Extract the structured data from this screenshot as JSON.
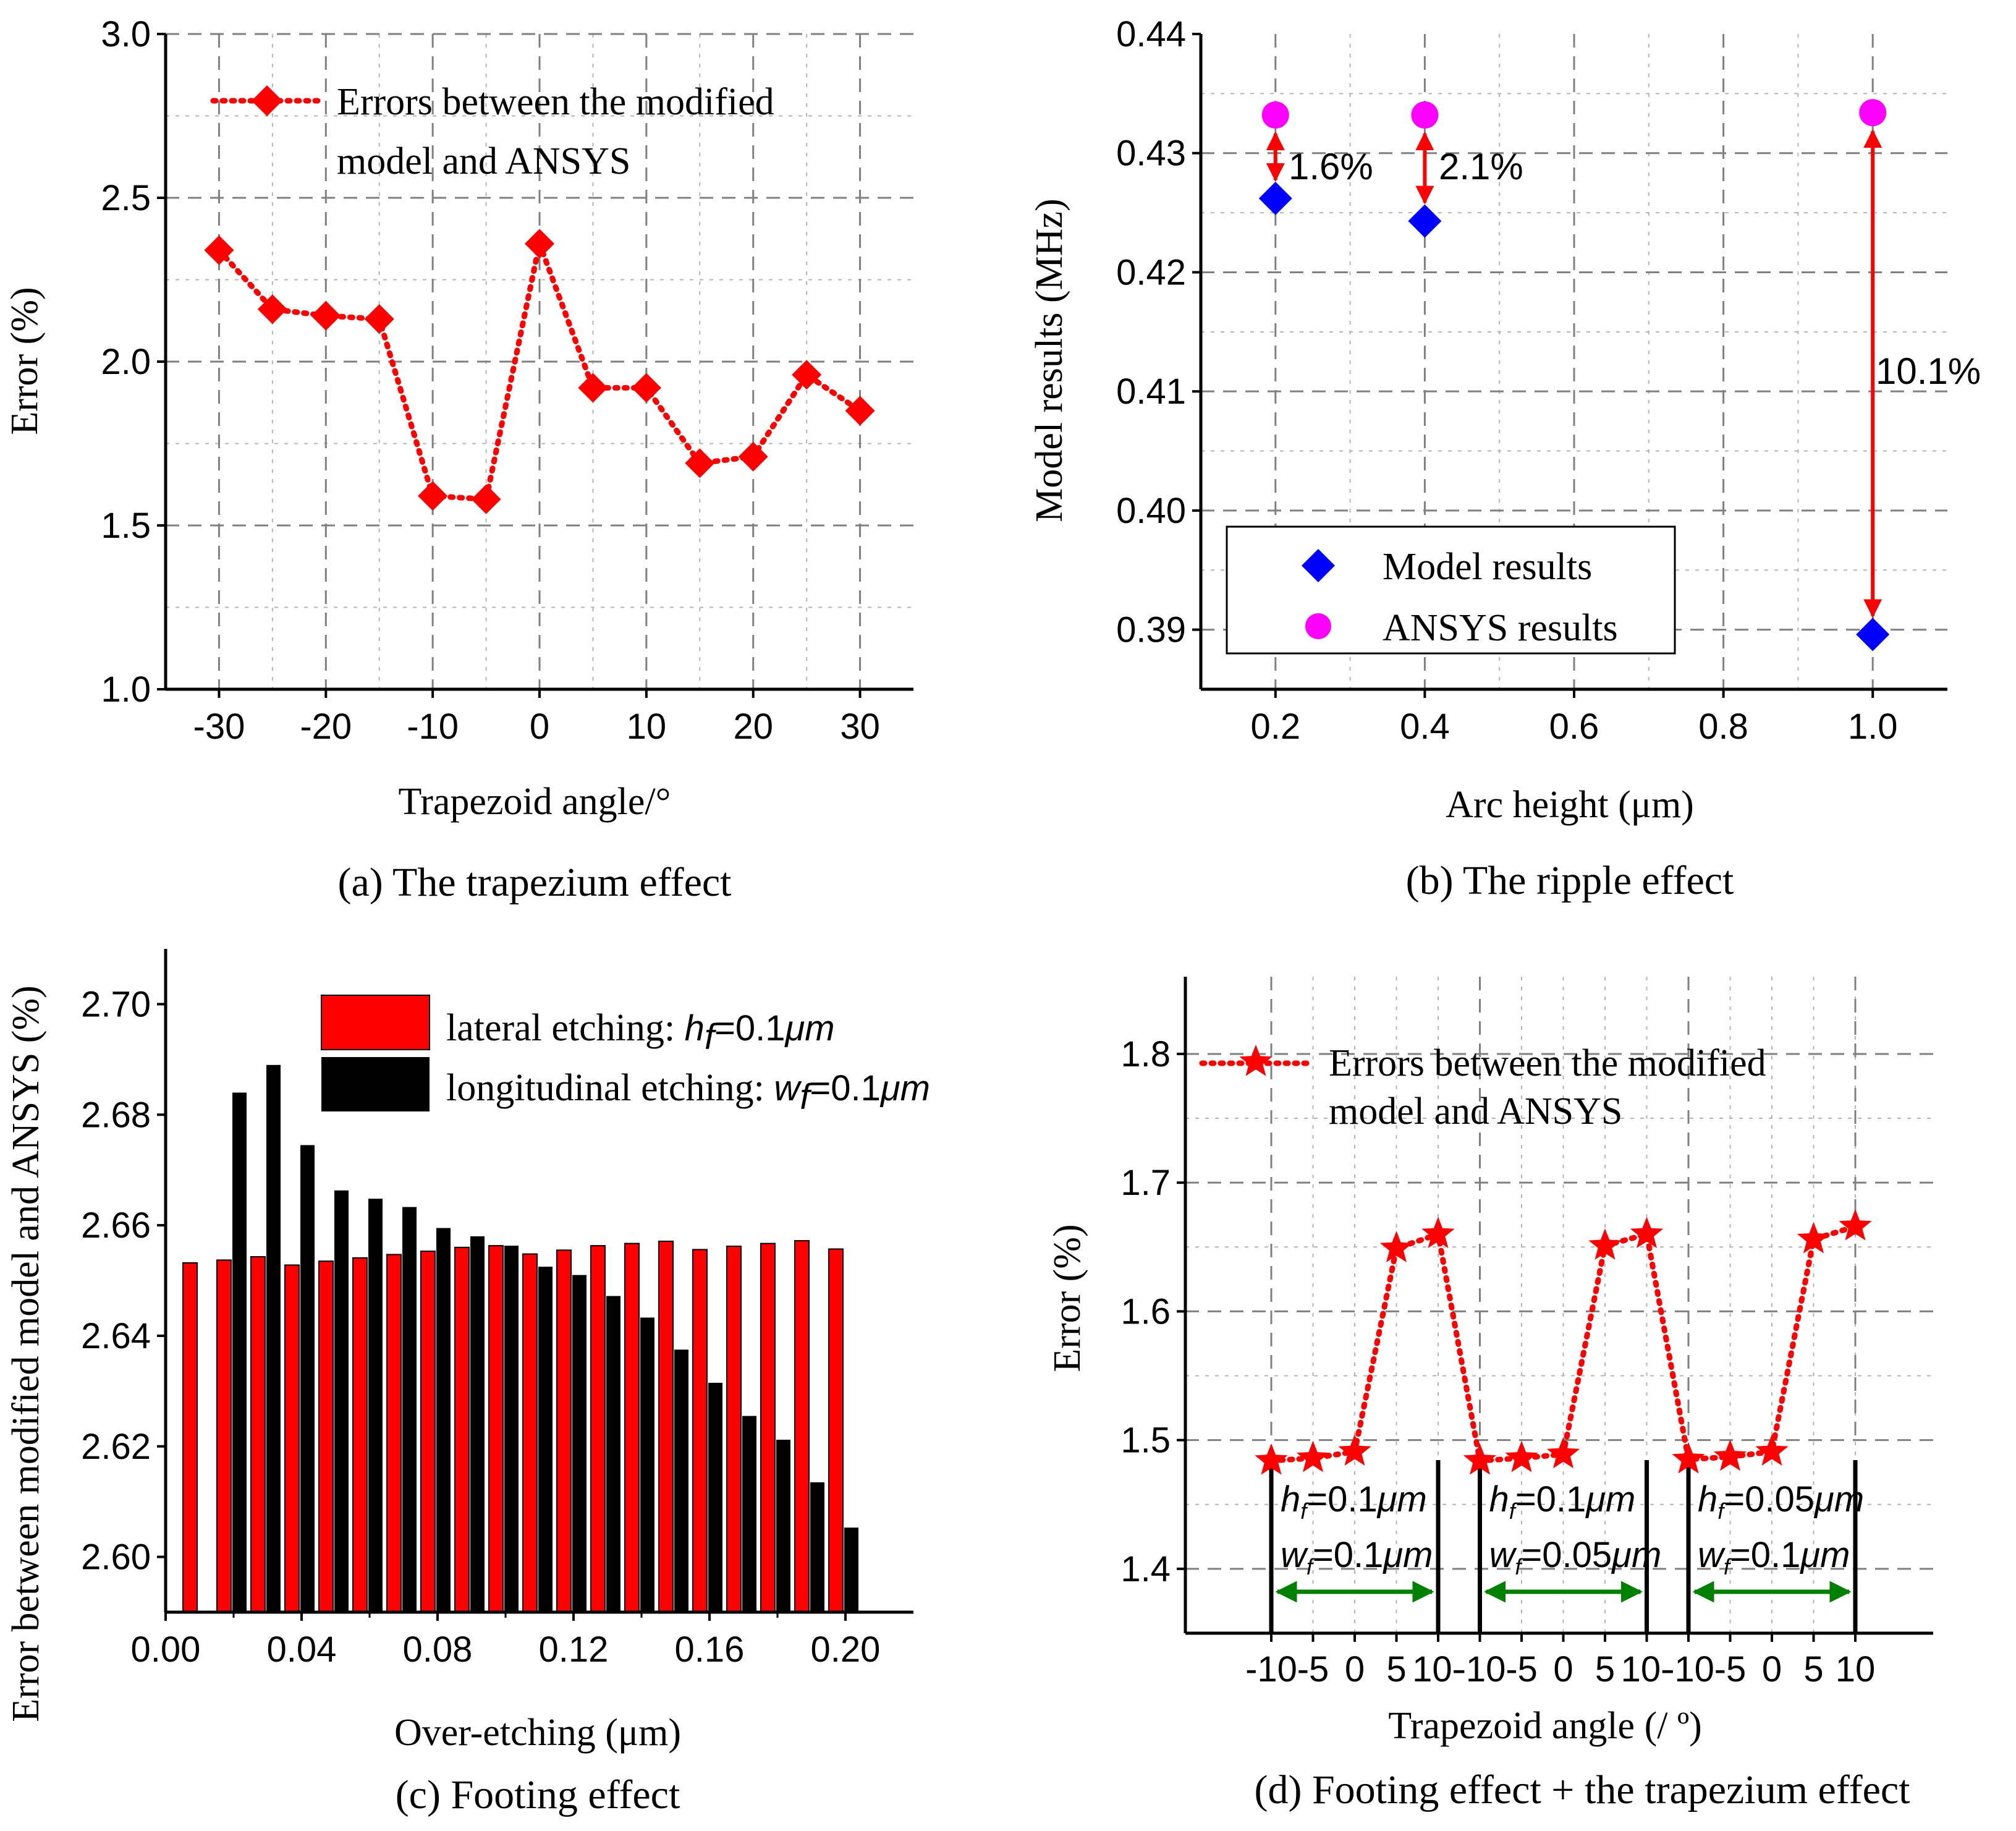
{
  "chart_data": [
    {
      "id": "a",
      "type": "line",
      "caption": "(a) The trapezium effect",
      "xlabel": "Trapezoid angle/°",
      "ylabel": "Error (%)",
      "xlim": [
        -35,
        35
      ],
      "ylim": [
        1.0,
        3.0
      ],
      "xticks": [
        "-30",
        "-20",
        "-10",
        "0",
        "10",
        "20",
        "30"
      ],
      "yticks": [
        "1.0",
        "1.5",
        "2.0",
        "2.5",
        "3.0"
      ],
      "legend": {
        "text_line1": "Errors between the modified",
        "text_line2": "model and ANSYS",
        "placement": "top-left"
      },
      "series": [
        {
          "name": "Errors between the modified model and ANSYS",
          "color": "#ff0000",
          "marker": "diamond",
          "x": [
            -30,
            -25,
            -20,
            -15,
            -10,
            -5,
            0,
            5,
            10,
            15,
            20,
            25,
            30
          ],
          "y": [
            2.34,
            2.16,
            2.14,
            2.13,
            1.59,
            1.58,
            2.36,
            1.92,
            1.92,
            1.69,
            1.71,
            1.96,
            1.85
          ]
        }
      ]
    },
    {
      "id": "b",
      "type": "scatter",
      "caption": "(b) The ripple effect",
      "xlabel": "Arc height (μm)",
      "ylabel": "Model results (MHz)",
      "xlim": [
        0.1,
        1.1
      ],
      "ylim": [
        0.385,
        0.44
      ],
      "xticks": [
        "0.2",
        "0.4",
        "0.6",
        "0.8",
        "1.0"
      ],
      "yticks": [
        "0.39",
        "0.40",
        "0.41",
        "0.42",
        "0.43",
        "0.44"
      ],
      "legend": {
        "model_label": "Model results",
        "ansys_label": "ANSYS results",
        "placement": "bottom-left"
      },
      "series": [
        {
          "name": "Model results",
          "color": "#0000ff",
          "marker": "diamond",
          "x": [
            0.2,
            0.4,
            1.0
          ],
          "y": [
            0.4262,
            0.4243,
            0.3896
          ]
        },
        {
          "name": "ANSYS results",
          "color": "#ff00ff",
          "marker": "circle",
          "x": [
            0.2,
            0.4,
            1.0
          ],
          "y": [
            0.4332,
            0.4332,
            0.4334
          ]
        }
      ],
      "annotations": [
        "1.6%",
        "2.1%",
        "10.1%"
      ]
    },
    {
      "id": "c",
      "type": "bar",
      "caption": "(c) Footing effect",
      "xlabel": "Over-etching (μm)",
      "ylabel": "Error between modified model and ANSYS (%)",
      "xlim": [
        0.0,
        0.22
      ],
      "ylim": [
        2.59,
        2.71
      ],
      "xticks": [
        "0.00",
        "0.04",
        "0.08",
        "0.12",
        "0.16",
        "0.20"
      ],
      "yticks": [
        "2.60",
        "2.62",
        "2.64",
        "2.66",
        "2.68",
        "2.70"
      ],
      "legend": {
        "placement": "top"
      },
      "series": [
        {
          "name": "lateral etching",
          "label_prefix": "lateral etching:  ",
          "var_base": "h",
          "var_sub": "f",
          "var_value": "=0.1",
          "var_unit": "μm",
          "color": "#ff0000",
          "x": [
            0.01,
            0.02,
            0.03,
            0.04,
            0.05,
            0.06,
            0.07,
            0.08,
            0.09,
            0.1,
            0.11,
            0.12,
            0.13,
            0.14,
            0.15,
            0.16,
            0.17,
            0.18,
            0.19,
            0.2
          ],
          "values": [
            2.6532,
            2.6537,
            2.6543,
            2.6528,
            2.6535,
            2.6541,
            2.6547,
            2.6553,
            2.656,
            2.6563,
            2.6548,
            2.6555,
            2.6563,
            2.6567,
            2.6571,
            2.6556,
            2.6562,
            2.6567,
            2.6572,
            2.6557
          ]
        },
        {
          "name": "longitudinal etching",
          "label_prefix": "longitudinal etching:  ",
          "var_base": "w",
          "var_sub": "f",
          "var_value": "=0.1",
          "var_unit": "μm",
          "color": "#000000",
          "x": [
            0.01,
            0.02,
            0.03,
            0.04,
            0.05,
            0.06,
            0.07,
            0.08,
            0.09,
            0.1,
            0.11,
            0.12,
            0.13,
            0.14,
            0.15,
            0.16,
            0.17,
            0.18,
            0.19,
            0.2
          ],
          "values": [
            2.59,
            2.684,
            2.689,
            2.6745,
            2.6663,
            2.6648,
            2.6633,
            2.6595,
            2.658,
            2.6563,
            2.6525,
            2.651,
            2.6472,
            2.6433,
            2.6375,
            2.6315,
            2.6255,
            2.6212,
            2.6135,
            2.6053
          ]
        }
      ]
    },
    {
      "id": "d",
      "type": "line",
      "caption": "(d) Footing effect + the trapezium effect",
      "xlabel": "Trapezoid angle (/ º)",
      "ylabel": "Error (%)",
      "ylim": [
        1.35,
        1.86
      ],
      "xticks": [
        "-10",
        "-5",
        "0",
        "5",
        "10-",
        "-10",
        "-5",
        "0",
        "5",
        "10-",
        "-10",
        "-5",
        "0",
        "5",
        "10"
      ],
      "yticks": [
        "1.4",
        "1.5",
        "1.6",
        "1.7",
        "1.8"
      ],
      "legend": {
        "text_line1": "Errors between the modified",
        "text_line2": "model and ANSYS",
        "placement": "top-left"
      },
      "series": [
        {
          "name": "Errors between the modified model and ANSYS",
          "color": "#ff0000",
          "marker": "star",
          "x_index": [
            0,
            1,
            2,
            3,
            4,
            5,
            6,
            7,
            8,
            9,
            10,
            11,
            12,
            13,
            14
          ],
          "y": [
            1.484,
            1.486,
            1.491,
            1.649,
            1.66,
            1.484,
            1.486,
            1.489,
            1.651,
            1.66,
            1.485,
            1.487,
            1.491,
            1.656,
            1.666
          ]
        }
      ],
      "groups": [
        {
          "h_base": "h",
          "h_sub": "f",
          "h_val": "=0.1",
          "h_unit": "μm",
          "w_base": "w",
          "w_sub": "f",
          "w_val": "=0.1",
          "w_unit": "μm"
        },
        {
          "h_base": "h",
          "h_sub": "f",
          "h_val": "=0.1",
          "h_unit": "μm",
          "w_base": "w",
          "w_sub": "f",
          "w_val": "=0.05",
          "w_unit": "μm"
        },
        {
          "h_base": "h",
          "h_sub": "f",
          "h_val": "=0.05",
          "h_unit": "μm",
          "w_base": "w",
          "w_sub": "f",
          "w_val": "=0.1",
          "w_unit": "μm"
        }
      ],
      "arrow_color": "#008000"
    }
  ]
}
